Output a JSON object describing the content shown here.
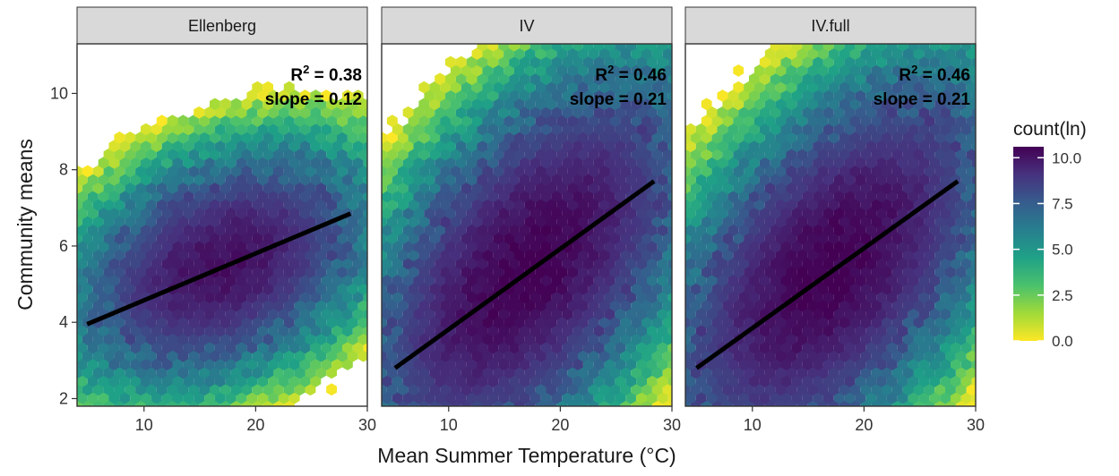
{
  "chart_data": {
    "type": "hexbin",
    "xlabel": "Mean Summer Temperature (°C)",
    "ylabel": "Community means",
    "xlim": [
      4,
      30
    ],
    "ylim": [
      1.8,
      11.3
    ],
    "x_ticks": [
      10,
      20,
      30
    ],
    "y_ticks": [
      2,
      4,
      6,
      8,
      10
    ],
    "grid": false,
    "legend": {
      "title": "count(ln)",
      "position": "right",
      "range": [
        0,
        10.6
      ],
      "ticks": [
        "0.0",
        "2.5",
        "5.0",
        "7.5",
        "10.0"
      ],
      "tick_values": [
        0,
        2.5,
        5,
        7.5,
        10
      ],
      "colors": [
        "#fde725",
        "#a0da39",
        "#4ac16d",
        "#1fa187",
        "#277f8e",
        "#365c8d",
        "#46327e",
        "#440154"
      ]
    },
    "panels": [
      {
        "title": "Ellenberg",
        "stat_r2_label": "R",
        "stat_r2_exp": "2",
        "stat_r2_value": " = 0.38",
        "stat_slope": "slope = 0.12",
        "r2": 0.38,
        "slope": 0.12,
        "fit_line": {
          "x": [
            4.9,
            28.5
          ],
          "y": [
            3.95,
            6.85
          ]
        },
        "cloud": {
          "cx": 17,
          "cy": 5.5,
          "sx": 8,
          "sy": 1.8,
          "rho": 0.35,
          "peak": 10.2,
          "core": 1.5,
          "seed": 11
        }
      },
      {
        "title": "IV",
        "stat_r2_label": "R",
        "stat_r2_exp": "2",
        "stat_r2_value": " = 0.46",
        "stat_slope": "slope = 0.21",
        "r2": 0.46,
        "slope": 0.21,
        "fit_line": {
          "x": [
            5.2,
            28.4
          ],
          "y": [
            2.8,
            7.7
          ]
        },
        "cloud": {
          "cx": 17,
          "cy": 5.4,
          "sx": 9.5,
          "sy": 3.2,
          "rho": 0.55,
          "peak": 10.6,
          "core": 1.6,
          "seed": 23
        }
      },
      {
        "title": "IV.full",
        "stat_r2_label": "R",
        "stat_r2_exp": "2",
        "stat_r2_value": " = 0.46",
        "stat_slope": "slope = 0.21",
        "r2": 0.46,
        "slope": 0.21,
        "fit_line": {
          "x": [
            5.0,
            28.4
          ],
          "y": [
            2.8,
            7.7
          ]
        },
        "cloud": {
          "cx": 17,
          "cy": 5.4,
          "sx": 9.5,
          "sy": 3.2,
          "rho": 0.55,
          "peak": 10.6,
          "core": 1.6,
          "seed": 37
        }
      }
    ]
  }
}
